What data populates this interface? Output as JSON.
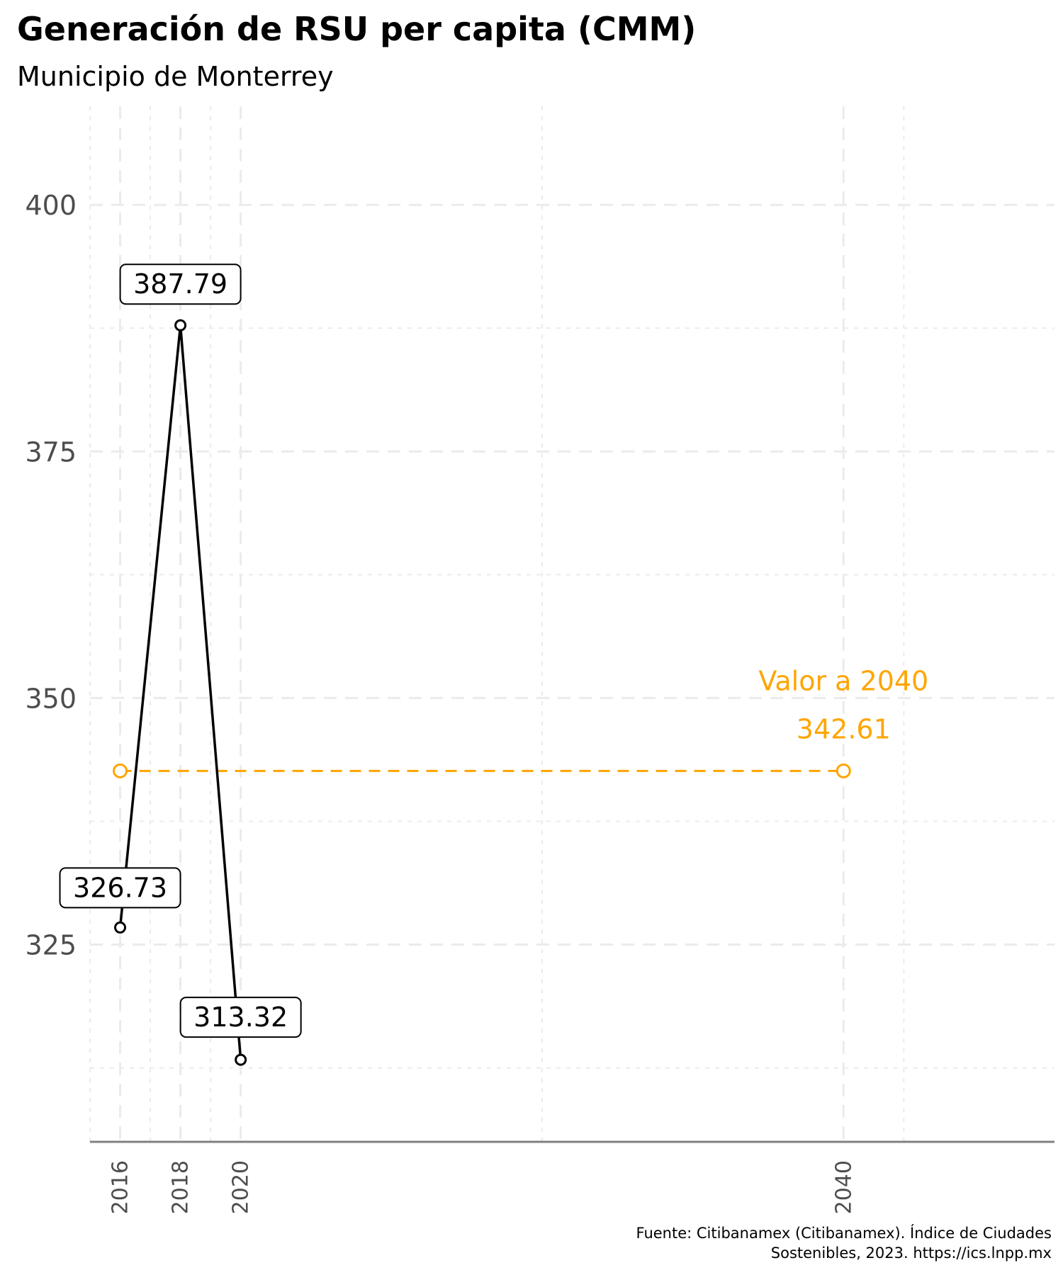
{
  "title": "Generación de RSU per capita (CMM)",
  "subtitle": "Municipio de Monterrey",
  "caption": {
    "line1": "Fuente: Citibanamex (Citibanamex). Índice de Ciudades",
    "line2": "Sostenibles, 2023. https://ics.lnpp.mx"
  },
  "colors": {
    "series": "#000000",
    "target": "#FFA500",
    "grid": "#ebebeb",
    "axis": "#808080"
  },
  "chart_data": {
    "type": "line",
    "title": "Generación de RSU per capita (CMM)",
    "subtitle": "Municipio de Monterrey",
    "xlabel": "",
    "ylabel": "",
    "xlim": [
      2015,
      2047
    ],
    "ylim": [
      305,
      410
    ],
    "x_ticks": [
      2016,
      2018,
      2020,
      2040
    ],
    "y_ticks": [
      325,
      350,
      375,
      400
    ],
    "grid": true,
    "series": [
      {
        "x": [
          2016,
          2018,
          2020
        ],
        "values": [
          326.73,
          387.79,
          313.32
        ],
        "labels": [
          "326.73",
          "387.79",
          "313.32"
        ]
      }
    ],
    "target": {
      "x": [
        2016,
        2040
      ],
      "values": [
        342.61,
        342.61
      ],
      "label_title": "Valor a 2040",
      "label_value": "342.61"
    }
  }
}
